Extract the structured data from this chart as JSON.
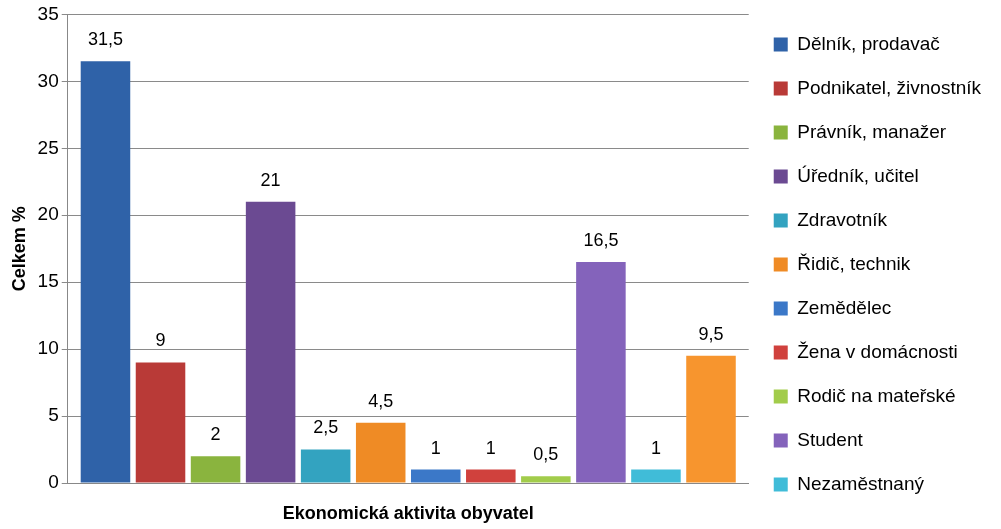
{
  "chart_data": {
    "type": "bar",
    "xlabel": "Ekonomická aktivita obyvatel",
    "ylabel": "Celkem %",
    "categories": [
      null
    ],
    "series": [
      {
        "name": "Dělník, prodavač",
        "color": "#2f62a8",
        "values": [
          31.5
        ],
        "value_labels": [
          "31,5"
        ]
      },
      {
        "name": "Podnikatel, živnostník",
        "color": "#b93a37",
        "values": [
          9
        ],
        "value_labels": [
          "9"
        ]
      },
      {
        "name": "Právník, manažer",
        "color": "#8ab43e",
        "values": [
          2
        ],
        "value_labels": [
          "2"
        ]
      },
      {
        "name": "Úředník, učitel",
        "color": "#6b4a92",
        "values": [
          21
        ],
        "value_labels": [
          "21"
        ]
      },
      {
        "name": "Zdravotník",
        "color": "#33a3c0",
        "values": [
          2.5
        ],
        "value_labels": [
          "2,5"
        ]
      },
      {
        "name": "Řidič, technik",
        "color": "#ef8b25",
        "values": [
          4.5
        ],
        "value_labels": [
          "4,5"
        ]
      },
      {
        "name": "Zemědělec",
        "color": "#3b78c8",
        "values": [
          1
        ],
        "value_labels": [
          "1"
        ]
      },
      {
        "name": "Žena v domácnosti",
        "color": "#d0413d",
        "values": [
          1
        ],
        "value_labels": [
          "1"
        ]
      },
      {
        "name": "Rodič na mateřské",
        "color": "#a2cc4b",
        "values": [
          0.5
        ],
        "value_labels": [
          "0,5"
        ]
      },
      {
        "name": "Student",
        "color": "#8463bb",
        "values": [
          16.5
        ],
        "value_labels": [
          "16,5"
        ]
      },
      {
        "name": "Nezaměstnaný",
        "color": "#40bcd8",
        "values": [
          1
        ],
        "value_labels": [
          "1"
        ]
      },
      {
        "color": "#f7952e",
        "values": [
          9.5
        ],
        "value_labels": [
          "9,5"
        ]
      }
    ],
    "ylim": [
      0,
      35
    ],
    "yticks": [
      0,
      5,
      10,
      15,
      20,
      25,
      30,
      35
    ],
    "grid": "y",
    "legend": "right"
  }
}
